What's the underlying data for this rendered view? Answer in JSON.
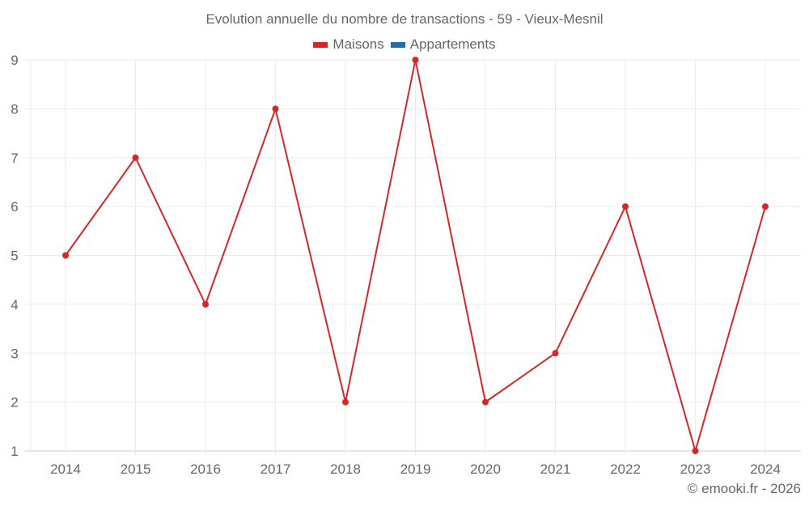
{
  "chart": {
    "title": "Evolution annuelle du nombre de transactions - 59 - Vieux-Mesnil",
    "credit": "© emooki.fr - 2026",
    "legend": [
      {
        "label": "Maisons",
        "color": "#d62728"
      },
      {
        "label": "Appartements",
        "color": "#1f6fa8"
      }
    ]
  },
  "chart_data": {
    "type": "line",
    "title": "Evolution annuelle du nombre de transactions - 59 - Vieux-Mesnil",
    "xlabel": "",
    "ylabel": "",
    "categories": [
      "2014",
      "2015",
      "2016",
      "2017",
      "2018",
      "2019",
      "2020",
      "2021",
      "2022",
      "2023",
      "2024"
    ],
    "series": [
      {
        "name": "Maisons",
        "color": "#d62728",
        "values": [
          5,
          7,
          4,
          8,
          2,
          9,
          2,
          3,
          6,
          1,
          6
        ]
      },
      {
        "name": "Appartements",
        "color": "#1f6fa8",
        "values": []
      }
    ],
    "yticks": [
      1,
      2,
      3,
      4,
      5,
      6,
      7,
      8,
      9
    ],
    "ylim": [
      1,
      9
    ],
    "grid": true,
    "legend_position": "top"
  }
}
